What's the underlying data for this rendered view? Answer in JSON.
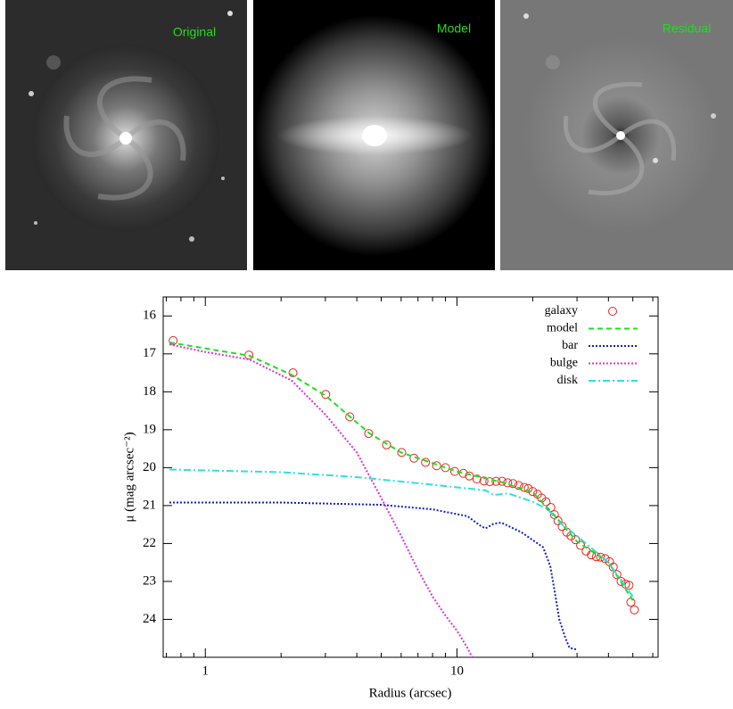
{
  "panels": [
    {
      "label": "Original"
    },
    {
      "label": "Model"
    },
    {
      "label": "Residual"
    }
  ],
  "chart_data": {
    "type": "line",
    "xlabel": "Radius (arcsec)",
    "ylabel": "μ (mag arcsec⁻²)",
    "x_log": true,
    "y_inverted": true,
    "xlim": [
      0.68,
      63
    ],
    "ylim": [
      15.5,
      25
    ],
    "xticks": [
      1,
      10
    ],
    "xminorticks": [
      0.7,
      0.8,
      0.9,
      2,
      3,
      4,
      5,
      6,
      7,
      8,
      9,
      20,
      30,
      40,
      50,
      60
    ],
    "yticks": [
      16,
      17,
      18,
      19,
      20,
      21,
      22,
      23,
      24
    ],
    "legend": "upper right",
    "series": [
      {
        "name": "galaxy",
        "color": "#e8251e",
        "style": "points",
        "x": [
          0.745,
          1.49,
          2.23,
          3.01,
          3.75,
          4.46,
          5.25,
          6.03,
          6.75,
          7.5,
          8.3,
          9.0,
          9.8,
          10.6,
          11.2,
          12.0,
          12.8,
          13.5,
          14.3,
          15.1,
          15.9,
          16.7,
          17.6,
          18.5,
          19.2,
          20.0,
          20.9,
          21.7,
          22.6,
          23.6,
          24.4,
          25.2,
          26.2,
          27.3,
          28.4,
          29.6,
          31.0,
          32.6,
          34.2,
          35.8,
          37.2,
          38.8,
          40.4,
          41.8,
          43.2,
          44.9,
          46.8,
          48.3,
          49.1,
          50.7
        ],
        "values": [
          16.65,
          17.03,
          17.5,
          18.07,
          18.66,
          19.1,
          19.4,
          19.6,
          19.75,
          19.86,
          19.95,
          20.0,
          20.1,
          20.15,
          20.22,
          20.3,
          20.35,
          20.37,
          20.36,
          20.36,
          20.4,
          20.42,
          20.47,
          20.52,
          20.55,
          20.63,
          20.7,
          20.8,
          20.9,
          21.05,
          21.24,
          21.4,
          21.55,
          21.7,
          21.8,
          21.9,
          22.05,
          22.2,
          22.3,
          22.35,
          22.36,
          22.4,
          22.48,
          22.62,
          22.82,
          23.0,
          23.07,
          23.1,
          23.55,
          23.75
        ]
      },
      {
        "name": "model",
        "color": "#22dd22",
        "style": "dashed",
        "x": [
          0.72,
          1.5,
          2.2,
          3.0,
          4.5,
          6,
          10,
          15,
          20,
          24,
          30,
          40,
          50
        ],
        "values": [
          16.7,
          17.05,
          17.55,
          18.1,
          19.1,
          19.6,
          20.1,
          20.38,
          20.65,
          21.2,
          21.95,
          22.5,
          23.5
        ]
      },
      {
        "name": "bar",
        "color": "#1020c8",
        "style": "dotted",
        "x": [
          0.72,
          2,
          5,
          8,
          11,
          12.5,
          13,
          14,
          15,
          18,
          22,
          23.5,
          24.5,
          25.5,
          27,
          28,
          30
        ],
        "values": [
          20.92,
          20.92,
          20.98,
          21.1,
          21.28,
          21.55,
          21.6,
          21.48,
          21.45,
          21.7,
          22.1,
          22.6,
          23.3,
          24.0,
          24.5,
          24.75,
          24.8
        ]
      },
      {
        "name": "bulge",
        "color": "#dd30dd",
        "style": "dotted",
        "x": [
          0.72,
          1,
          1.5,
          2.2,
          3,
          4,
          5,
          6,
          7,
          8,
          9,
          10,
          11,
          11.5
        ],
        "values": [
          16.75,
          16.95,
          17.15,
          17.7,
          18.6,
          19.6,
          20.8,
          21.8,
          22.7,
          23.4,
          23.9,
          24.3,
          24.75,
          25.0
        ]
      },
      {
        "name": "disk",
        "color": "#30e0e0",
        "style": "dashdot",
        "x": [
          0.72,
          2,
          4,
          8,
          13,
          14,
          16,
          20,
          23,
          25,
          30,
          40,
          50
        ],
        "values": [
          20.05,
          20.12,
          20.25,
          20.45,
          20.6,
          20.72,
          20.68,
          20.9,
          21.1,
          21.4,
          21.8,
          22.5,
          23.4
        ]
      }
    ]
  }
}
